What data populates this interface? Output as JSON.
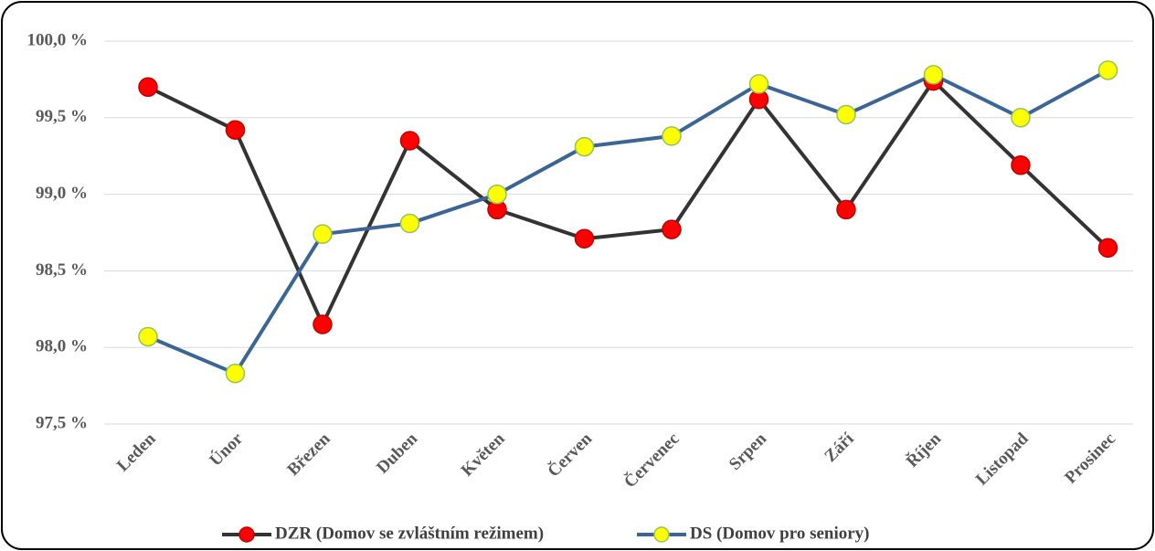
{
  "chart_data": {
    "type": "line",
    "categories": [
      "Leden",
      "Únor",
      "Březen",
      "Duben",
      "Květen",
      "Červen",
      "Červenec",
      "Srpen",
      "Září",
      "Říjen",
      "Listopad",
      "Prosinec"
    ],
    "series": [
      {
        "name": "DZR (Domov se zvláštním režimem)",
        "color": "#333333",
        "marker_color": "#ff0000",
        "values": [
          99.7,
          99.42,
          98.15,
          99.35,
          98.9,
          98.71,
          98.77,
          99.62,
          98.9,
          99.74,
          99.19,
          98.65
        ]
      },
      {
        "name": "DS (Domov pro seniory)",
        "color": "#3a6594",
        "marker_color": "#ffff00",
        "values": [
          98.07,
          97.83,
          98.74,
          98.81,
          99.0,
          99.31,
          99.38,
          99.72,
          99.52,
          99.78,
          99.5,
          99.81
        ]
      }
    ],
    "ylim": [
      97.5,
      100.0
    ],
    "yticks": [
      {
        "value": 97.5,
        "label": "97,5 %"
      },
      {
        "value": 98.0,
        "label": "98,0 %"
      },
      {
        "value": 98.5,
        "label": "98,5 %"
      },
      {
        "value": 99.0,
        "label": "99,0 %"
      },
      {
        "value": 99.5,
        "label": "99,5 %"
      },
      {
        "value": 100.0,
        "label": "100,0 %"
      }
    ],
    "grid": true,
    "legend": "bottom"
  }
}
